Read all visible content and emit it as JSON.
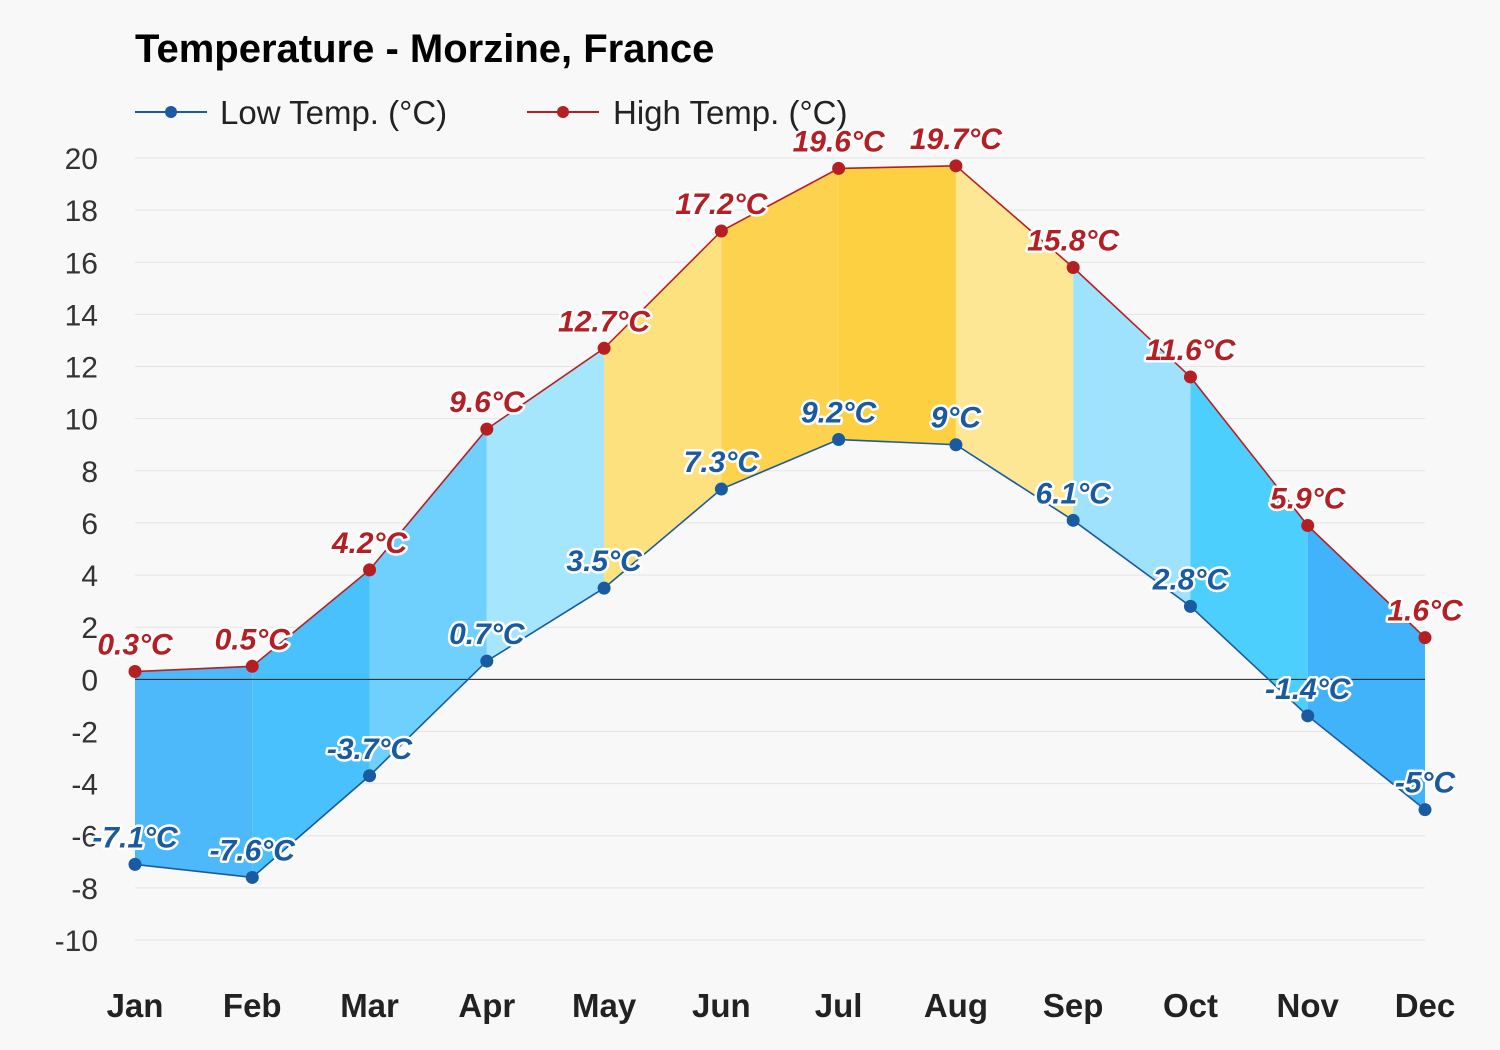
{
  "chart_data": {
    "type": "area",
    "title": "Temperature - Morzine, France",
    "categories": [
      "Jan",
      "Feb",
      "Mar",
      "Apr",
      "May",
      "Jun",
      "Jul",
      "Aug",
      "Sep",
      "Oct",
      "Nov",
      "Dec"
    ],
    "series": [
      {
        "name": "Low Temp. (°C)",
        "values": [
          -7.1,
          -7.6,
          -3.7,
          0.7,
          3.5,
          7.3,
          9.2,
          9,
          6.1,
          2.8,
          -1.4,
          -5
        ],
        "color": "#1a5aa0",
        "labels": [
          "-7.1°C",
          "-7.6°C",
          "-3.7°C",
          "0.7°C",
          "3.5°C",
          "7.3°C",
          "9.2°C",
          "9°C",
          "6.1°C",
          "2.8°C",
          "-1.4°C",
          "-5°C"
        ]
      },
      {
        "name": "High Temp. (°C)",
        "values": [
          0.3,
          0.5,
          4.2,
          9.6,
          12.7,
          17.2,
          19.6,
          19.7,
          15.8,
          11.6,
          5.9,
          1.6
        ],
        "color": "#b51f24",
        "labels": [
          "0.3°C",
          "0.5°C",
          "4.2°C",
          "9.6°C",
          "12.7°C",
          "17.2°C",
          "19.6°C",
          "19.7°C",
          "15.8°C",
          "11.6°C",
          "5.9°C",
          "1.6°C"
        ]
      }
    ],
    "band_colors": [
      "#4db8fa",
      "#48c1fc",
      "#6fd0fd",
      "#a6e6fd",
      "#fde17e",
      "#fdd24f",
      "#fcd040",
      "#fde694",
      "#9fe2fd",
      "#4dcffd",
      "#41b3fa",
      "#4db8fa"
    ],
    "ylim": [
      -10,
      20
    ],
    "yticks": [
      20,
      18,
      16,
      14,
      12,
      10,
      8,
      6,
      4,
      2,
      0,
      -2,
      -4,
      -6,
      -8,
      -10
    ],
    "grid": true,
    "legend": "top-left"
  }
}
